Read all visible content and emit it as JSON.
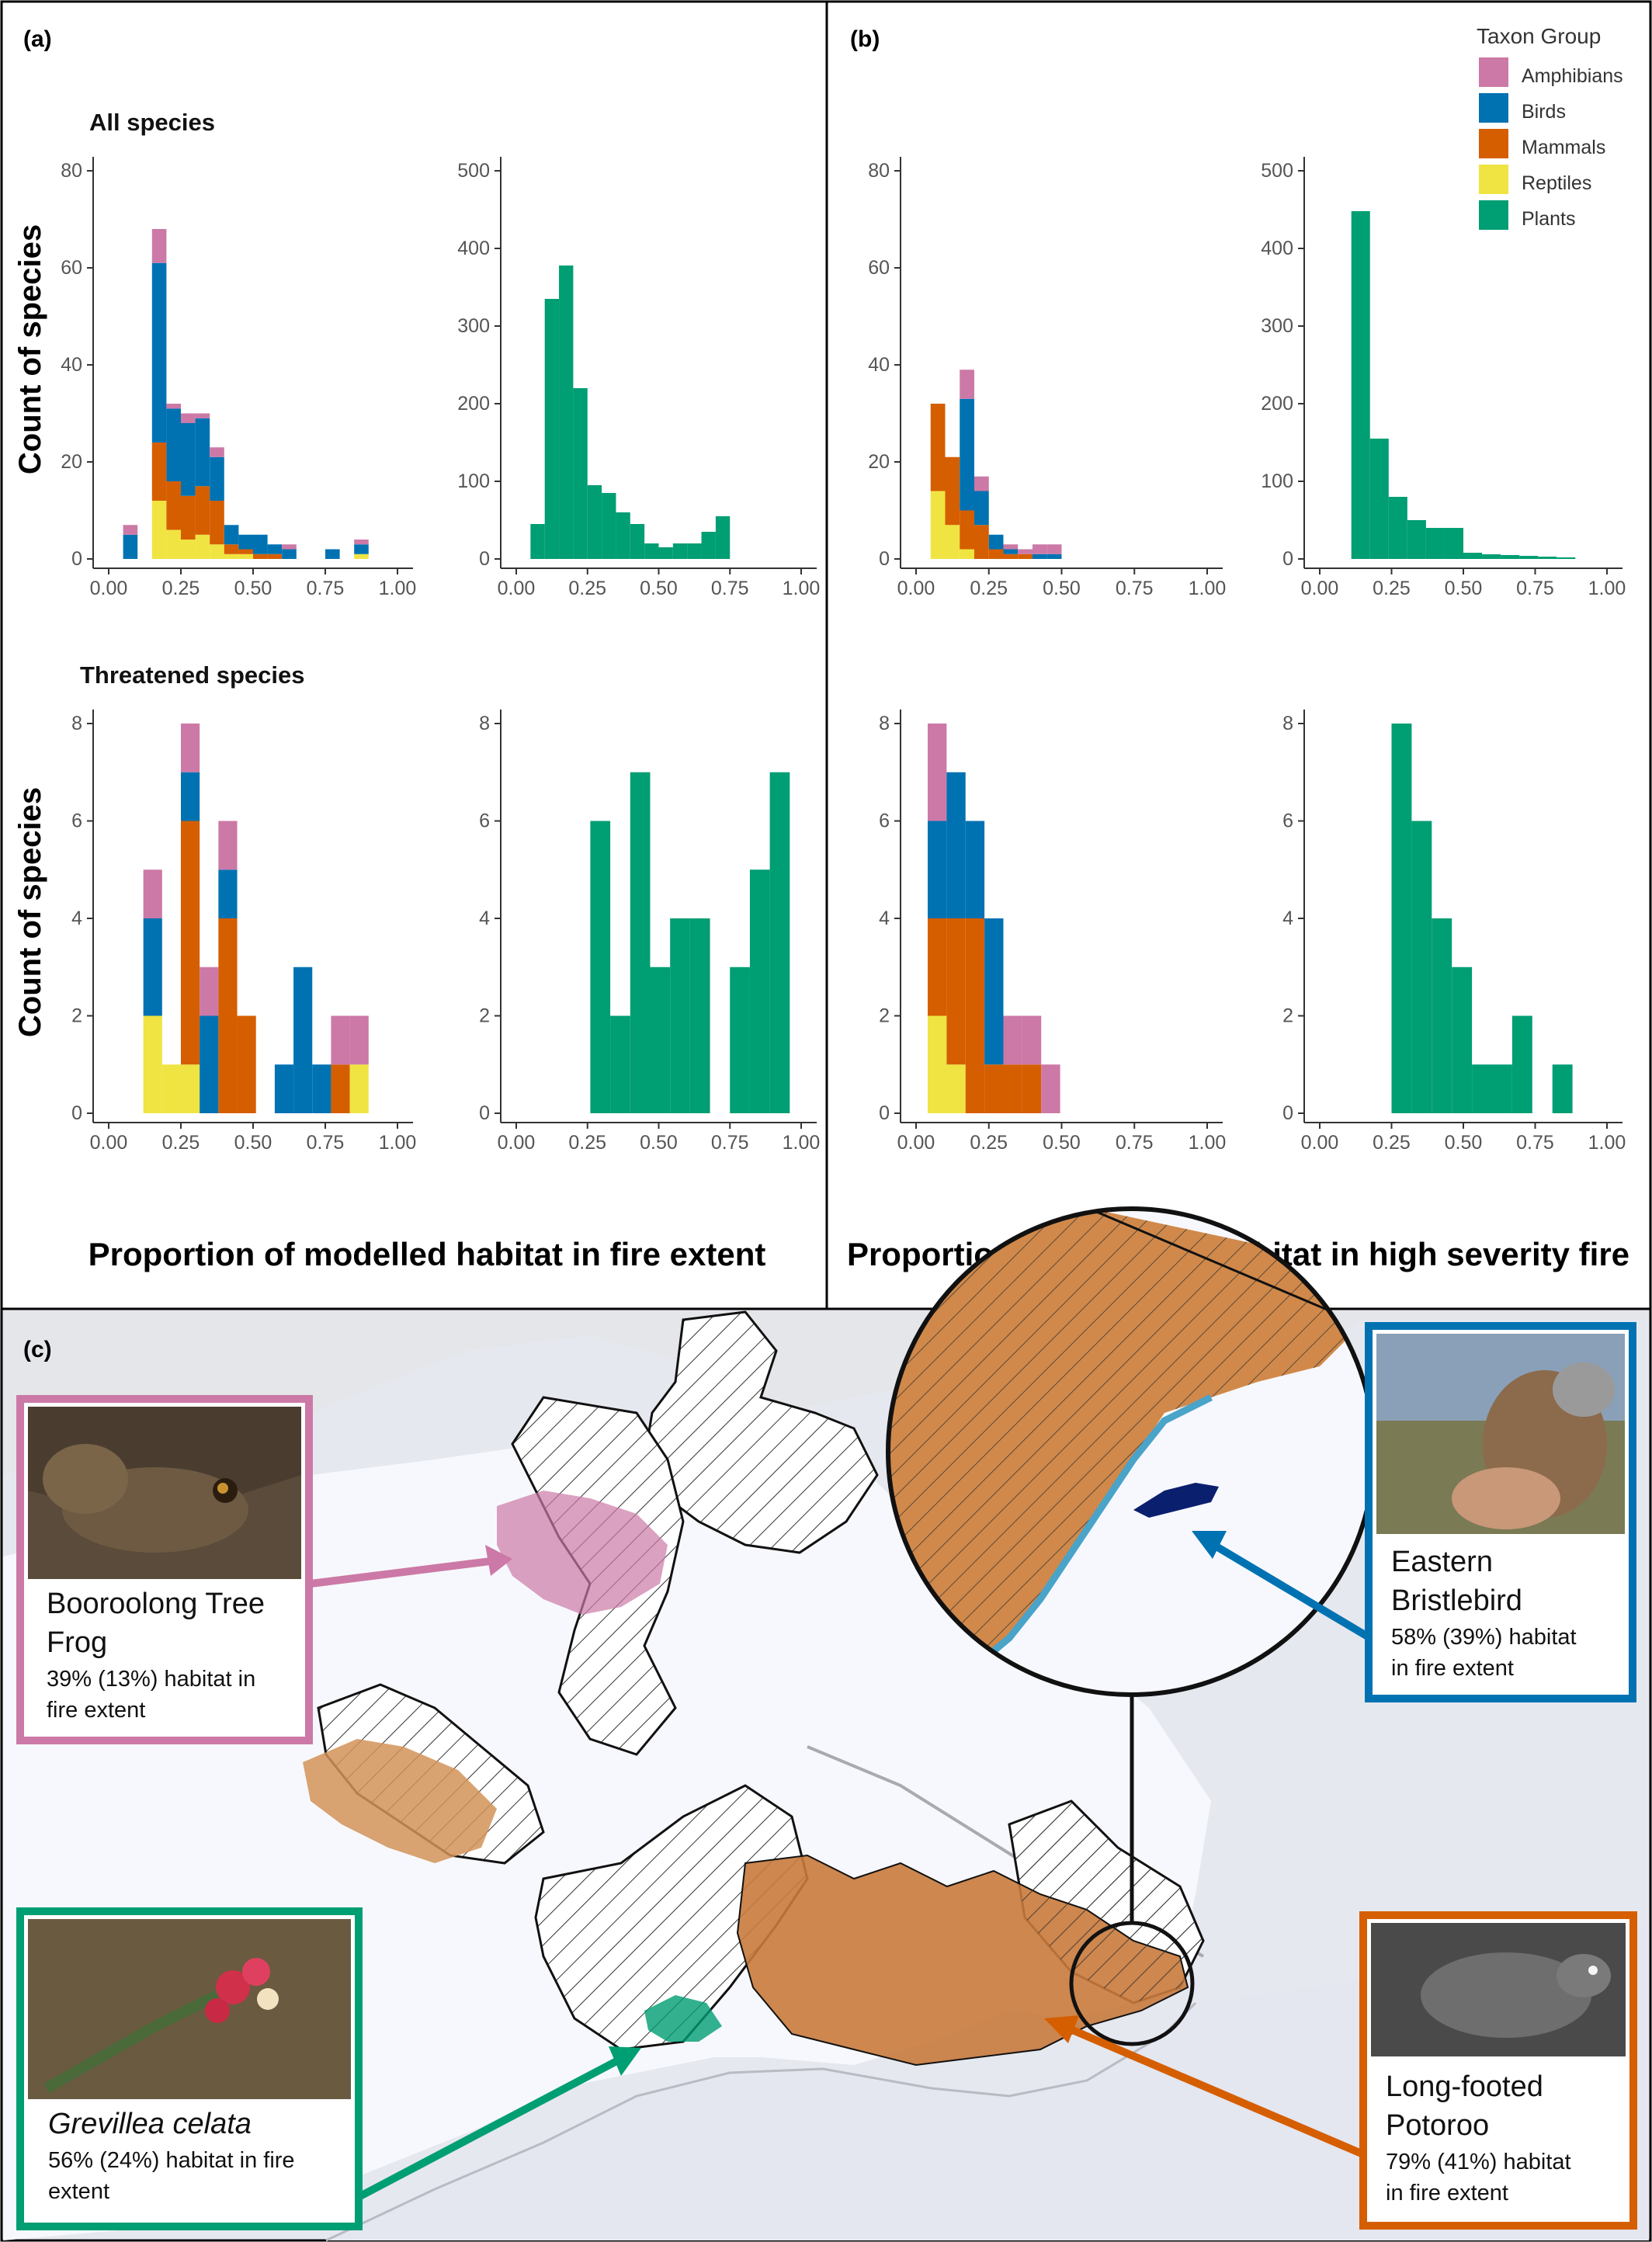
{
  "panels": {
    "a_label": "(a)",
    "b_label": "(b)",
    "c_label": "(c)",
    "row1_title": "All species",
    "row2_title": "Threatened species",
    "ylabel": "Count of species",
    "xlabel_a": "Proportion of modelled habitat in fire extent",
    "xlabel_b": "Proportion of modelled habitat in high severity fire"
  },
  "legend": {
    "title": "Taxon Group",
    "items": [
      {
        "name": "Amphibians",
        "color": "#cc79a7"
      },
      {
        "name": "Birds",
        "color": "#0072b2"
      },
      {
        "name": "Mammals",
        "color": "#d55e00"
      },
      {
        "name": "Reptiles",
        "color": "#f0e442"
      },
      {
        "name": "Plants",
        "color": "#009e73"
      }
    ]
  },
  "chart_data": [
    {
      "id": "a1-animals",
      "type": "bar",
      "stacked": true,
      "xlim": [
        0,
        1
      ],
      "ylim": [
        0,
        80
      ],
      "bin_width": 0.05,
      "x_ticks": [
        "0.00",
        "0.25",
        "0.50",
        "0.75",
        "1.00"
      ],
      "y_ticks": [
        "0",
        "20",
        "40",
        "60",
        "80"
      ],
      "bins": [
        0.05,
        0.1,
        0.15,
        0.2,
        0.25,
        0.3,
        0.35,
        0.4,
        0.45,
        0.5,
        0.55,
        0.6,
        0.65,
        0.7,
        0.75,
        0.8,
        0.85,
        0.9
      ],
      "series": [
        {
          "name": "Reptiles",
          "values": [
            0,
            0,
            12,
            6,
            4,
            5,
            3,
            1,
            1,
            0,
            0,
            0,
            0,
            0,
            0,
            0,
            1,
            0
          ]
        },
        {
          "name": "Mammals",
          "values": [
            0,
            0,
            12,
            10,
            9,
            10,
            9,
            2,
            1,
            1,
            1,
            0,
            0,
            0,
            0,
            0,
            0,
            0
          ]
        },
        {
          "name": "Birds",
          "values": [
            5,
            0,
            37,
            15,
            15,
            14,
            9,
            4,
            3,
            4,
            2,
            2,
            0,
            0,
            2,
            0,
            2,
            0
          ]
        },
        {
          "name": "Amphibians",
          "values": [
            2,
            0,
            7,
            1,
            2,
            1,
            2,
            0,
            0,
            0,
            0,
            1,
            0,
            0,
            0,
            0,
            1,
            0
          ]
        }
      ]
    },
    {
      "id": "a1-plants",
      "type": "bar",
      "stacked": false,
      "xlim": [
        0,
        1
      ],
      "ylim": [
        0,
        500
      ],
      "bin_width": 0.05,
      "x_ticks": [
        "0.00",
        "0.25",
        "0.50",
        "0.75",
        "1.00"
      ],
      "y_ticks": [
        "0",
        "100",
        "200",
        "300",
        "400",
        "500"
      ],
      "bins": [
        0.05,
        0.1,
        0.15,
        0.2,
        0.25,
        0.3,
        0.35,
        0.4,
        0.45,
        0.5,
        0.55,
        0.6,
        0.65,
        0.7,
        0.75,
        0.8,
        0.85,
        0.9,
        0.95
      ],
      "series": [
        {
          "name": "Plants",
          "values": [
            45,
            335,
            378,
            220,
            95,
            85,
            60,
            45,
            20,
            15,
            20,
            20,
            35,
            55,
            0,
            0,
            0,
            0,
            0
          ]
        }
      ]
    },
    {
      "id": "b1-animals",
      "type": "bar",
      "stacked": true,
      "xlim": [
        0,
        1
      ],
      "ylim": [
        0,
        80
      ],
      "bin_width": 0.05,
      "x_ticks": [
        "0.00",
        "0.25",
        "0.50",
        "0.75",
        "1.00"
      ],
      "y_ticks": [
        "0",
        "20",
        "40",
        "60",
        "80"
      ],
      "bins": [
        0.05,
        0.1,
        0.15,
        0.2,
        0.25,
        0.3,
        0.35,
        0.4,
        0.45,
        0.5
      ],
      "series": [
        {
          "name": "Reptiles",
          "values": [
            14,
            7,
            2,
            0,
            0,
            0,
            0,
            0,
            0,
            0
          ]
        },
        {
          "name": "Mammals",
          "values": [
            18,
            14,
            8,
            7,
            2,
            1,
            1,
            0,
            0,
            0
          ]
        },
        {
          "name": "Birds",
          "values": [
            0,
            0,
            23,
            7,
            3,
            1,
            0,
            1,
            1,
            0
          ]
        },
        {
          "name": "Amphibians",
          "values": [
            0,
            0,
            6,
            3,
            0,
            1,
            1,
            2,
            2,
            0
          ]
        }
      ]
    },
    {
      "id": "b1-plants",
      "type": "bar",
      "stacked": false,
      "xlim": [
        0,
        1
      ],
      "ylim": [
        0,
        500
      ],
      "bin_width": 0.065,
      "x_ticks": [
        "0.00",
        "0.25",
        "0.50",
        "0.75",
        "1.00"
      ],
      "y_ticks": [
        "0",
        "100",
        "200",
        "300",
        "400",
        "500"
      ],
      "bins": [
        0.11,
        0.175,
        0.24,
        0.305,
        0.37,
        0.435,
        0.5,
        0.565,
        0.63,
        0.695,
        0.76,
        0.825
      ],
      "series": [
        {
          "name": "Plants",
          "values": [
            448,
            155,
            80,
            50,
            40,
            40,
            8,
            6,
            5,
            4,
            3,
            2
          ]
        }
      ]
    },
    {
      "id": "a2-animals",
      "type": "bar",
      "stacked": true,
      "xlim": [
        0,
        1
      ],
      "ylim": [
        0,
        8
      ],
      "bin_width": 0.065,
      "x_ticks": [
        "0.00",
        "0.25",
        "0.50",
        "0.75",
        "1.00"
      ],
      "y_ticks": [
        "0",
        "2",
        "4",
        "6",
        "8"
      ],
      "bins": [
        0.12,
        0.185,
        0.25,
        0.315,
        0.38,
        0.445,
        0.51,
        0.575,
        0.64,
        0.705,
        0.77,
        0.835
      ],
      "series": [
        {
          "name": "Reptiles",
          "values": [
            2,
            1,
            1,
            0,
            0,
            0,
            0,
            0,
            0,
            0,
            0,
            1
          ]
        },
        {
          "name": "Mammals",
          "values": [
            0,
            0,
            5,
            0,
            4,
            2,
            0,
            0,
            0,
            0,
            1,
            0
          ]
        },
        {
          "name": "Birds",
          "values": [
            2,
            0,
            1,
            2,
            1,
            0,
            0,
            1,
            3,
            1,
            0,
            0
          ]
        },
        {
          "name": "Amphibians",
          "values": [
            1,
            0,
            1,
            1,
            1,
            0,
            0,
            0,
            0,
            0,
            1,
            1
          ]
        }
      ]
    },
    {
      "id": "a2-plants",
      "type": "bar",
      "stacked": false,
      "xlim": [
        0,
        1
      ],
      "ylim": [
        0,
        8
      ],
      "bin_width": 0.07,
      "x_ticks": [
        "0.00",
        "0.25",
        "0.50",
        "0.75",
        "1.00"
      ],
      "y_ticks": [
        "0",
        "2",
        "4",
        "6",
        "8"
      ],
      "bins": [
        0.26,
        0.33,
        0.4,
        0.47,
        0.54,
        0.61,
        0.68,
        0.75,
        0.82,
        0.89
      ],
      "series": [
        {
          "name": "Plants",
          "values": [
            6,
            2,
            7,
            3,
            4,
            4,
            0,
            3,
            5,
            7
          ]
        }
      ]
    },
    {
      "id": "b2-animals",
      "type": "bar",
      "stacked": true,
      "xlim": [
        0,
        1
      ],
      "ylim": [
        0,
        8
      ],
      "bin_width": 0.065,
      "x_ticks": [
        "0.00",
        "0.25",
        "0.50",
        "0.75",
        "1.00"
      ],
      "y_ticks": [
        "0",
        "2",
        "4",
        "6",
        "8"
      ],
      "bins": [
        0.04,
        0.105,
        0.17,
        0.235,
        0.3,
        0.365,
        0.43
      ],
      "series": [
        {
          "name": "Reptiles",
          "values": [
            2,
            1,
            0,
            0,
            0,
            0,
            0
          ]
        },
        {
          "name": "Mammals",
          "values": [
            2,
            3,
            4,
            1,
            1,
            1,
            0
          ]
        },
        {
          "name": "Birds",
          "values": [
            2,
            3,
            2,
            3,
            0,
            0,
            0
          ]
        },
        {
          "name": "Amphibians",
          "values": [
            2,
            0,
            0,
            0,
            1,
            1,
            1
          ]
        }
      ]
    },
    {
      "id": "b2-plants",
      "type": "bar",
      "stacked": false,
      "xlim": [
        0,
        1
      ],
      "ylim": [
        0,
        8
      ],
      "bin_width": 0.07,
      "x_ticks": [
        "0.00",
        "0.25",
        "0.50",
        "0.75",
        "1.00"
      ],
      "y_ticks": [
        "0",
        "2",
        "4",
        "6",
        "8"
      ],
      "bins": [
        0.25,
        0.32,
        0.39,
        0.46,
        0.53,
        0.6,
        0.67,
        0.74,
        0.81
      ],
      "series": [
        {
          "name": "Plants",
          "values": [
            8,
            6,
            4,
            3,
            1,
            1,
            2,
            0,
            1
          ]
        }
      ]
    }
  ],
  "map": {
    "callouts": [
      {
        "name": "Booroolong Tree Frog",
        "stat": "39% (13%) habitat in fire extent",
        "color": "#cc79a7"
      },
      {
        "name": "Eastern Bristlebird",
        "stat": "58% (39%) habitat in fire extent",
        "color": "#0072b2"
      },
      {
        "name": "Grevillea celata",
        "stat": "56% (24%) habitat in fire extent",
        "color": "#009e73"
      },
      {
        "name": "Long-footed Potoroo",
        "stat": "79% (41%) habitat in fire extent",
        "color": "#d55e00"
      }
    ]
  }
}
